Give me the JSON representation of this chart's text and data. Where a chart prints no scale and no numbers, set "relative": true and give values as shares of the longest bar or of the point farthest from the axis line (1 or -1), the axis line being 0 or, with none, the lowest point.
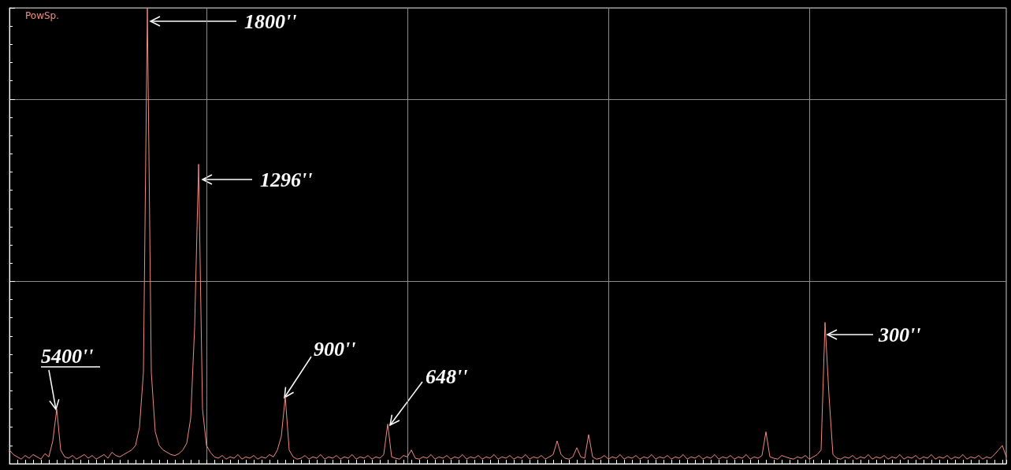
{
  "chart_data": {
    "type": "line",
    "ylabel": "PowSp.",
    "relative": true,
    "grid": true,
    "color": "#f08a80",
    "annotations": [
      "5400''",
      "1800''",
      "1296''",
      "900''",
      "648''",
      "300''"
    ],
    "categories": [
      null,
      null,
      null,
      null,
      null,
      null,
      null,
      null,
      null,
      null,
      null,
      null,
      null,
      null,
      null,
      null,
      null,
      null,
      null,
      null,
      null,
      null,
      null,
      null,
      null,
      null,
      null,
      null,
      null,
      null,
      null,
      null,
      null,
      null,
      null,
      null,
      null,
      null,
      null,
      null,
      null,
      null,
      null,
      null,
      null,
      null,
      null,
      null,
      null,
      null,
      null,
      null,
      null,
      null,
      null,
      null,
      null,
      null,
      null,
      null,
      null,
      null,
      null,
      null,
      null,
      null,
      null,
      null,
      null,
      null,
      null,
      null,
      null,
      null,
      null,
      null,
      null,
      null,
      null,
      null,
      null,
      null,
      null,
      null,
      null,
      null,
      null,
      null,
      null,
      null,
      null,
      null,
      null,
      null,
      null,
      null,
      null,
      null,
      null,
      null,
      null,
      null,
      null,
      null,
      null,
      null,
      null,
      null,
      null,
      null,
      null,
      null,
      null,
      null,
      null,
      null,
      null,
      null,
      null,
      null,
      null,
      null,
      null,
      null,
      null,
      null,
      null,
      null,
      null,
      null,
      null,
      null,
      null,
      null,
      null,
      null,
      null,
      null,
      null,
      null,
      null,
      null,
      null,
      null,
      null,
      null,
      null,
      null,
      null,
      null,
      null,
      null,
      null,
      null,
      null,
      null,
      null,
      null,
      null,
      null,
      null,
      null,
      null,
      null,
      null,
      null,
      null,
      null,
      null,
      null,
      null,
      null,
      null,
      null,
      null,
      null,
      null,
      null,
      null,
      null,
      null,
      null,
      null,
      null,
      null,
      null,
      null,
      null,
      null,
      null,
      null,
      null,
      null,
      null,
      null,
      null,
      null,
      null,
      null,
      null,
      null,
      null,
      null,
      null,
      null,
      null,
      null,
      null,
      null,
      null,
      null,
      null,
      null,
      null,
      null,
      null,
      null,
      null,
      null,
      null,
      null,
      null,
      null,
      null,
      null,
      null,
      null,
      null,
      null,
      null,
      null,
      null,
      null,
      null,
      null,
      null,
      null,
      null,
      null,
      null,
      null,
      null,
      null,
      null,
      null,
      null,
      null,
      null,
      null,
      null,
      null,
      null,
      null,
      null
    ],
    "values": [
      0.03,
      0.02,
      0.015,
      0.01,
      0.018,
      0.012,
      0.02,
      0.015,
      0.01,
      0.022,
      0.015,
      0.05,
      0.12,
      0.03,
      0.015,
      0.012,
      0.018,
      0.01,
      0.015,
      0.02,
      0.012,
      0.018,
      0.01,
      0.015,
      0.02,
      0.012,
      0.025,
      0.018,
      0.015,
      0.02,
      0.025,
      0.03,
      0.04,
      0.08,
      0.2,
      1.0,
      0.2,
      0.07,
      0.04,
      0.03,
      0.025,
      0.02,
      0.018,
      0.022,
      0.03,
      0.045,
      0.1,
      0.3,
      0.657,
      0.12,
      0.04,
      0.025,
      0.015,
      0.012,
      0.018,
      0.01,
      0.015,
      0.012,
      0.02,
      0.01,
      0.015,
      0.012,
      0.018,
      0.01,
      0.015,
      0.012,
      0.02,
      0.015,
      0.03,
      0.06,
      0.147,
      0.03,
      0.015,
      0.01,
      0.012,
      0.018,
      0.01,
      0.015,
      0.012,
      0.02,
      0.01,
      0.015,
      0.012,
      0.018,
      0.01,
      0.015,
      0.012,
      0.02,
      0.01,
      0.015,
      0.012,
      0.018,
      0.01,
      0.015,
      0.012,
      0.02,
      0.087,
      0.015,
      0.012,
      0.01,
      0.018,
      0.015,
      0.03,
      0.012,
      0.01,
      0.015,
      0.012,
      0.02,
      0.01,
      0.015,
      0.012,
      0.018,
      0.01,
      0.015,
      0.012,
      0.02,
      0.01,
      0.015,
      0.012,
      0.018,
      0.01,
      0.015,
      0.012,
      0.02,
      0.01,
      0.015,
      0.012,
      0.018,
      0.01,
      0.015,
      0.012,
      0.02,
      0.01,
      0.015,
      0.012,
      0.018,
      0.01,
      0.015,
      0.02,
      0.05,
      0.02,
      0.012,
      0.01,
      0.015,
      0.035,
      0.015,
      0.012,
      0.064,
      0.015,
      0.01,
      0.012,
      0.018,
      0.01,
      0.015,
      0.012,
      0.02,
      0.01,
      0.015,
      0.012,
      0.018,
      0.01,
      0.015,
      0.012,
      0.02,
      0.01,
      0.015,
      0.012,
      0.018,
      0.01,
      0.015,
      0.012,
      0.02,
      0.01,
      0.015,
      0.012,
      0.018,
      0.01,
      0.015,
      0.012,
      0.02,
      0.01,
      0.015,
      0.012,
      0.018,
      0.01,
      0.015,
      0.012,
      0.02,
      0.01,
      0.015,
      0.012,
      0.018,
      0.07,
      0.015,
      0.012,
      0.01,
      0.018,
      0.015,
      0.012,
      0.01,
      0.015,
      0.012,
      0.018,
      0.01,
      0.015,
      0.02,
      0.03,
      0.31,
      0.15,
      0.02,
      0.012,
      0.01,
      0.015,
      0.012,
      0.018,
      0.01,
      0.015,
      0.012,
      0.02,
      0.01,
      0.015,
      0.012,
      0.018,
      0.01,
      0.015,
      0.012,
      0.02,
      0.01,
      0.015,
      0.012,
      0.018,
      0.01,
      0.015,
      0.012,
      0.02,
      0.01,
      0.015,
      0.012,
      0.018,
      0.01,
      0.015,
      0.012,
      0.02,
      0.01,
      0.015,
      0.012,
      0.018,
      0.01,
      0.015,
      0.012,
      0.02,
      0.03,
      0.04,
      0.015
    ]
  }
}
